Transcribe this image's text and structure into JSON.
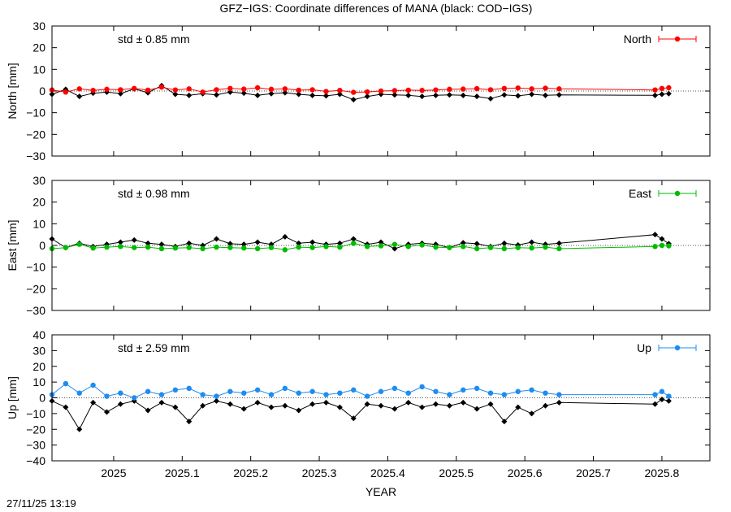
{
  "title": "GFZ−IGS: Coordinate differences of MANA (black: COD−IGS)",
  "timestamp": "27/11/25 13:19",
  "chart_data": {
    "type": "scatter",
    "xlabel": "YEAR",
    "xlim": [
      2024.91,
      2025.87
    ],
    "xticks": [
      2025,
      2025.1,
      2025.2,
      2025.3,
      2025.4,
      2025.5,
      2025.6,
      2025.7,
      2025.8
    ],
    "xtick_labels": [
      "2025",
      "2025.1",
      "2025.2",
      "2025.3",
      "2025.4",
      "2025.5",
      "2025.6",
      "2025.7",
      "2025.8"
    ],
    "panels": [
      {
        "name": "north",
        "ylabel": "North [mm]",
        "ylim": [
          -30,
          30
        ],
        "yticks": [
          30,
          20,
          10,
          0,
          -10,
          -20,
          -30
        ],
        "ytick_labels": [
          "30",
          "20",
          "10",
          "0",
          "−10",
          "−20",
          "−30"
        ],
        "std_text": "std ± 0.85 mm",
        "legend_label": "North",
        "color": "#ff0000",
        "grid": false,
        "zero_line": "dotted",
        "series": [
          {
            "name": "GFZ−IGS",
            "color": "#ff0000",
            "x": [
              2024.91,
              2024.93,
              2024.95,
              2024.97,
              2024.99,
              2025.01,
              2025.03,
              2025.05,
              2025.07,
              2025.09,
              2025.11,
              2025.13,
              2025.15,
              2025.17,
              2025.19,
              2025.21,
              2025.23,
              2025.25,
              2025.27,
              2025.29,
              2025.31,
              2025.33,
              2025.35,
              2025.37,
              2025.39,
              2025.41,
              2025.43,
              2025.45,
              2025.47,
              2025.49,
              2025.51,
              2025.53,
              2025.55,
              2025.57,
              2025.59,
              2025.61,
              2025.63,
              2025.65,
              2025.79,
              2025.8,
              2025.81
            ],
            "y": [
              0.5,
              -0.5,
              1.0,
              0.3,
              0.8,
              0.6,
              1.2,
              0.4,
              1.8,
              0.5,
              1.0,
              -0.5,
              0.6,
              1.2,
              0.9,
              1.5,
              0.8,
              1.0,
              0.4,
              0.6,
              -0.2,
              0.3,
              -0.6,
              -0.4,
              0.0,
              0.2,
              0.4,
              0.3,
              0.5,
              0.8,
              0.9,
              1.1,
              0.6,
              1.2,
              1.4,
              1.0,
              1.3,
              1.0,
              0.5,
              1.2,
              1.5
            ]
          },
          {
            "name": "COD−IGS",
            "color": "#000000",
            "x": [
              2024.91,
              2024.93,
              2024.95,
              2024.97,
              2024.99,
              2025.01,
              2025.03,
              2025.05,
              2025.07,
              2025.09,
              2025.11,
              2025.13,
              2025.15,
              2025.17,
              2025.19,
              2025.21,
              2025.23,
              2025.25,
              2025.27,
              2025.29,
              2025.31,
              2025.33,
              2025.35,
              2025.37,
              2025.39,
              2025.41,
              2025.43,
              2025.45,
              2025.47,
              2025.49,
              2025.51,
              2025.53,
              2025.55,
              2025.57,
              2025.59,
              2025.61,
              2025.63,
              2025.65,
              2025.79,
              2025.8,
              2025.81
            ],
            "y": [
              -1.5,
              0.8,
              -2.5,
              -1.0,
              -0.5,
              -1.2,
              1.0,
              -0.8,
              2.5,
              -1.5,
              -2.0,
              -1.2,
              -1.8,
              -0.5,
              -1.0,
              -2.0,
              -1.2,
              -0.8,
              -1.5,
              -2.0,
              -2.2,
              -1.5,
              -4.0,
              -2.5,
              -1.5,
              -1.8,
              -2.0,
              -2.5,
              -2.0,
              -1.8,
              -2.0,
              -2.5,
              -3.5,
              -1.8,
              -2.2,
              -1.5,
              -2.0,
              -1.8,
              -2.0,
              -1.5,
              -1.2
            ]
          }
        ]
      },
      {
        "name": "east",
        "ylabel": "East [mm]",
        "ylim": [
          -30,
          30
        ],
        "yticks": [
          30,
          20,
          10,
          0,
          -10,
          -20,
          -30
        ],
        "ytick_labels": [
          "30",
          "20",
          "10",
          "0",
          "−10",
          "−20",
          "−30"
        ],
        "std_text": "std ± 0.98 mm",
        "legend_label": "East",
        "color": "#00bb00",
        "grid": false,
        "zero_line": "dotted",
        "series": [
          {
            "name": "GFZ−IGS",
            "color": "#00bb00",
            "x": [
              2024.91,
              2024.93,
              2024.95,
              2024.97,
              2024.99,
              2025.01,
              2025.03,
              2025.05,
              2025.07,
              2025.09,
              2025.11,
              2025.13,
              2025.15,
              2025.17,
              2025.19,
              2025.21,
              2025.23,
              2025.25,
              2025.27,
              2025.29,
              2025.31,
              2025.33,
              2025.35,
              2025.37,
              2025.39,
              2025.41,
              2025.43,
              2025.45,
              2025.47,
              2025.49,
              2025.51,
              2025.53,
              2025.55,
              2025.57,
              2025.59,
              2025.61,
              2025.63,
              2025.65,
              2025.79,
              2025.8,
              2025.81
            ],
            "y": [
              -1.5,
              -1.0,
              0.5,
              -1.2,
              -0.8,
              -0.5,
              -1.0,
              -0.8,
              -1.5,
              -1.2,
              -1.0,
              -1.5,
              -0.8,
              -1.0,
              -1.2,
              -1.5,
              -1.0,
              -2.0,
              -0.8,
              -1.0,
              -0.5,
              -0.8,
              1.0,
              -0.5,
              -0.2,
              0.5,
              -0.5,
              0.2,
              -0.8,
              -1.0,
              -0.5,
              -1.5,
              -1.0,
              -1.5,
              -1.0,
              -1.2,
              -0.8,
              -1.5,
              -0.5,
              0.0,
              -0.2
            ]
          },
          {
            "name": "COD−IGS",
            "color": "#000000",
            "x": [
              2024.91,
              2024.93,
              2024.95,
              2024.97,
              2024.99,
              2025.01,
              2025.03,
              2025.05,
              2025.07,
              2025.09,
              2025.11,
              2025.13,
              2025.15,
              2025.17,
              2025.19,
              2025.21,
              2025.23,
              2025.25,
              2025.27,
              2025.29,
              2025.31,
              2025.33,
              2025.35,
              2025.37,
              2025.39,
              2025.41,
              2025.43,
              2025.45,
              2025.47,
              2025.49,
              2025.51,
              2025.53,
              2025.55,
              2025.57,
              2025.59,
              2025.61,
              2025.63,
              2025.65,
              2025.79,
              2025.8,
              2025.81
            ],
            "y": [
              3.0,
              -1.0,
              1.0,
              -0.5,
              0.5,
              1.5,
              2.5,
              1.0,
              0.5,
              -0.5,
              1.0,
              0.0,
              3.0,
              0.8,
              0.5,
              1.5,
              0.5,
              4.0,
              1.0,
              1.5,
              0.5,
              1.0,
              3.0,
              0.5,
              1.5,
              -1.5,
              0.5,
              1.0,
              0.5,
              -1.0,
              1.2,
              0.8,
              -0.5,
              1.0,
              0.2,
              1.5,
              0.5,
              1.0,
              5.0,
              3.0,
              0.8
            ]
          }
        ]
      },
      {
        "name": "up",
        "ylabel": "Up [mm]",
        "ylim": [
          -40,
          40
        ],
        "yticks": [
          40,
          30,
          20,
          10,
          0,
          -10,
          -20,
          -30,
          -40
        ],
        "ytick_labels": [
          "40",
          "30",
          "20",
          "10",
          "0",
          "−10",
          "−20",
          "−30",
          "−40"
        ],
        "std_text": "std ± 2.59 mm",
        "legend_label": "Up",
        "color": "#1e8cf0",
        "grid": false,
        "zero_line": "dotted",
        "series": [
          {
            "name": "GFZ−IGS",
            "color": "#1e8cf0",
            "x": [
              2024.91,
              2024.93,
              2024.95,
              2024.97,
              2024.99,
              2025.01,
              2025.03,
              2025.05,
              2025.07,
              2025.09,
              2025.11,
              2025.13,
              2025.15,
              2025.17,
              2025.19,
              2025.21,
              2025.23,
              2025.25,
              2025.27,
              2025.29,
              2025.31,
              2025.33,
              2025.35,
              2025.37,
              2025.39,
              2025.41,
              2025.43,
              2025.45,
              2025.47,
              2025.49,
              2025.51,
              2025.53,
              2025.55,
              2025.57,
              2025.59,
              2025.61,
              2025.63,
              2025.65,
              2025.79,
              2025.8,
              2025.81
            ],
            "y": [
              2.0,
              9.0,
              3.0,
              8.0,
              1.0,
              3.0,
              0.0,
              4.0,
              2.0,
              5.0,
              6.0,
              2.0,
              1.0,
              4.0,
              3.0,
              5.0,
              2.0,
              6.0,
              3.0,
              4.0,
              2.0,
              3.0,
              5.0,
              1.0,
              4.0,
              6.0,
              3.0,
              7.0,
              4.0,
              2.0,
              5.0,
              6.0,
              3.0,
              2.0,
              4.0,
              5.0,
              3.0,
              2.0,
              2.0,
              4.0,
              1.0
            ]
          },
          {
            "name": "COD−IGS",
            "color": "#000000",
            "x": [
              2024.91,
              2024.93,
              2024.95,
              2024.97,
              2024.99,
              2025.01,
              2025.03,
              2025.05,
              2025.07,
              2025.09,
              2025.11,
              2025.13,
              2025.15,
              2025.17,
              2025.19,
              2025.21,
              2025.23,
              2025.25,
              2025.27,
              2025.29,
              2025.31,
              2025.33,
              2025.35,
              2025.37,
              2025.39,
              2025.41,
              2025.43,
              2025.45,
              2025.47,
              2025.49,
              2025.51,
              2025.53,
              2025.55,
              2025.57,
              2025.59,
              2025.61,
              2025.63,
              2025.65,
              2025.79,
              2025.8,
              2025.81
            ],
            "y": [
              -2.0,
              -6.0,
              -20.0,
              -3.0,
              -9.0,
              -4.0,
              -2.0,
              -8.0,
              -3.0,
              -6.0,
              -15.0,
              -5.0,
              -2.0,
              -4.0,
              -7.0,
              -3.0,
              -6.0,
              -5.0,
              -8.0,
              -4.0,
              -3.0,
              -6.0,
              -13.0,
              -4.0,
              -5.0,
              -7.0,
              -3.0,
              -6.0,
              -4.0,
              -5.0,
              -3.0,
              -7.0,
              -4.0,
              -15.0,
              -6.0,
              -10.0,
              -5.0,
              -3.0,
              -4.0,
              -1.0,
              -2.0
            ]
          }
        ]
      }
    ]
  }
}
